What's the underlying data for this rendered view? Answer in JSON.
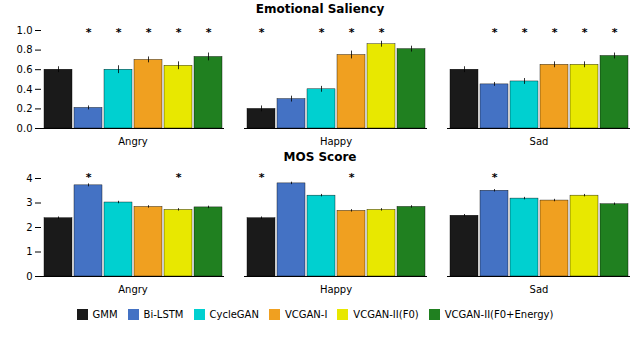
{
  "chart_data": [
    {
      "type": "bar",
      "title": "Emotional Saliency",
      "categories": [
        "Angry",
        "Happy",
        "Sad"
      ],
      "series": [
        {
          "name": "GMM",
          "color": "#1a1a1a",
          "values": [
            0.6,
            0.2,
            0.6
          ],
          "errors": [
            0.03,
            0.03,
            0.03
          ]
        },
        {
          "name": "Bi-LSTM",
          "color": "#4472c4",
          "values": [
            0.21,
            0.3,
            0.45
          ],
          "errors": [
            0.02,
            0.03,
            0.02
          ]
        },
        {
          "name": "CycleGAN",
          "color": "#00d0d0",
          "values": [
            0.6,
            0.4,
            0.48
          ],
          "errors": [
            0.04,
            0.03,
            0.03
          ]
        },
        {
          "name": "VCGAN-I",
          "color": "#f0a020",
          "values": [
            0.7,
            0.75,
            0.65
          ],
          "errors": [
            0.03,
            0.04,
            0.03
          ]
        },
        {
          "name": "VCGAN-II(F0)",
          "color": "#e8e800",
          "values": [
            0.64,
            0.86,
            0.65
          ],
          "errors": [
            0.04,
            0.03,
            0.03
          ]
        },
        {
          "name": "VCGAN-II(F0+Energy)",
          "color": "#208020",
          "values": [
            0.73,
            0.81,
            0.74
          ],
          "errors": [
            0.04,
            0.03,
            0.03
          ]
        }
      ],
      "ylim": [
        0.0,
        1.0
      ],
      "yticks": [
        {
          "value": 0.0,
          "label": "0.0"
        },
        0.2,
        0.4,
        0.6,
        0.8,
        {
          "value": 1.0,
          "label": "1.0"
        }
      ],
      "annotations": [
        {
          "text": "*",
          "category": "Angry",
          "series": "Bi-LSTM",
          "y": 0.94
        },
        {
          "text": "*",
          "category": "Angry",
          "series": "CycleGAN",
          "y": 0.94
        },
        {
          "text": "*",
          "category": "Angry",
          "series": "VCGAN-I",
          "y": 0.94
        },
        {
          "text": "*",
          "category": "Angry",
          "series": "VCGAN-II(F0)",
          "y": 0.94
        },
        {
          "text": "*",
          "category": "Angry",
          "series": "VCGAN-II(F0+Energy)",
          "y": 0.94
        },
        {
          "text": "*",
          "category": "Happy",
          "series": "GMM",
          "y": 0.94
        },
        {
          "text": "*",
          "category": "Happy",
          "series": "CycleGAN",
          "y": 0.94
        },
        {
          "text": "*",
          "category": "Happy",
          "series": "VCGAN-I",
          "y": 0.94
        },
        {
          "text": "*",
          "category": "Happy",
          "series": "VCGAN-II(F0)",
          "y": 0.94
        },
        {
          "text": "*",
          "category": "Sad",
          "series": "Bi-LSTM",
          "y": 0.94
        },
        {
          "text": "*",
          "category": "Sad",
          "series": "CycleGAN",
          "y": 0.94
        },
        {
          "text": "*",
          "category": "Sad",
          "series": "VCGAN-I",
          "y": 0.94
        },
        {
          "text": "*",
          "category": "Sad",
          "series": "VCGAN-II(F0)",
          "y": 0.94
        },
        {
          "text": "*",
          "category": "Sad",
          "series": "VCGAN-II(F0+Energy)",
          "y": 0.94
        }
      ]
    },
    {
      "type": "bar",
      "title": "MOS Score",
      "categories": [
        "Angry",
        "Happy",
        "Sad"
      ],
      "series": [
        {
          "name": "GMM",
          "color": "#1a1a1a",
          "values": [
            2.38,
            2.38,
            2.48
          ],
          "errors": [
            0.05,
            0.05,
            0.05
          ]
        },
        {
          "name": "Bi-LSTM",
          "color": "#4472c4",
          "values": [
            3.72,
            3.8,
            3.5
          ],
          "errors": [
            0.06,
            0.05,
            0.05
          ]
        },
        {
          "name": "CycleGAN",
          "color": "#00d0d0",
          "values": [
            3.02,
            3.3,
            3.18
          ],
          "errors": [
            0.05,
            0.05,
            0.05
          ]
        },
        {
          "name": "VCGAN-I",
          "color": "#f0a020",
          "values": [
            2.84,
            2.68,
            3.1
          ],
          "errors": [
            0.05,
            0.05,
            0.05
          ]
        },
        {
          "name": "VCGAN-II(F0)",
          "color": "#e8e800",
          "values": [
            2.72,
            2.72,
            3.3
          ],
          "errors": [
            0.05,
            0.05,
            0.05
          ]
        },
        {
          "name": "VCGAN-II(F0+Energy)",
          "color": "#208020",
          "values": [
            2.82,
            2.84,
            2.95
          ],
          "errors": [
            0.05,
            0.05,
            0.05
          ]
        }
      ],
      "ylim": [
        0,
        4
      ],
      "yticks": [
        0,
        1,
        2,
        3,
        4
      ],
      "legend": "bottom",
      "annotations": [
        {
          "text": "*",
          "category": "Angry",
          "series": "Bi-LSTM",
          "y": 3.9
        },
        {
          "text": "*",
          "category": "Angry",
          "series": "VCGAN-II(F0)",
          "y": 3.9
        },
        {
          "text": "*",
          "category": "Happy",
          "series": "GMM",
          "y": 3.9
        },
        {
          "text": "*",
          "category": "Happy",
          "series": "VCGAN-I",
          "y": 3.9
        },
        {
          "text": "*",
          "category": "Sad",
          "series": "Bi-LSTM",
          "y": 3.9
        }
      ]
    }
  ]
}
